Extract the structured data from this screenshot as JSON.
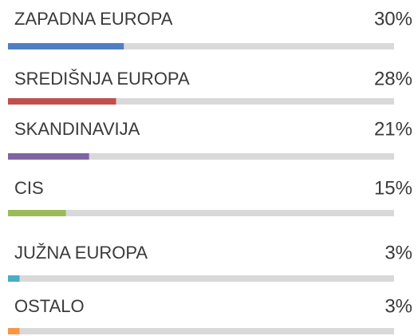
{
  "chart_data": {
    "type": "progress",
    "categories": [
      "ZAPADNA EUROPA",
      "SREDIŠNJA EUROPA",
      "SKANDINAVIJA",
      "CIS",
      "JUŽNA EUROPA",
      "OSTALO"
    ],
    "values": [
      30,
      28,
      21,
      15,
      3,
      3
    ],
    "value_labels": [
      "30%",
      "28%",
      "21%",
      "15%",
      "3%",
      "3%"
    ],
    "colors": [
      "#4f7fc1",
      "#c0504d",
      "#8064a2",
      "#9bbb59",
      "#4bacc6",
      "#f79646"
    ],
    "track_color": "#d9d9d9",
    "xlim": [
      0,
      100
    ]
  }
}
